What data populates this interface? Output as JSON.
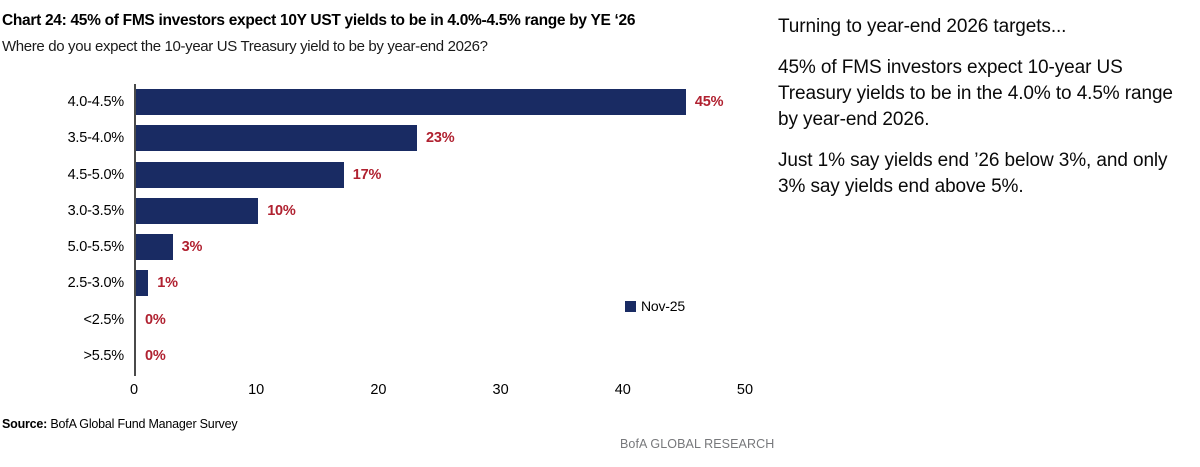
{
  "chart": {
    "title": "Chart 24: 45% of FMS investors expect 10Y UST yields to be in 4.0%-4.5% range by YE ‘26",
    "subtitle": "Where do you expect the 10-year US Treasury yield to be by year-end 2026?",
    "source_label": "Source:",
    "source_text": " BofA Global Fund Manager Survey",
    "footer": "BofA GLOBAL RESEARCH"
  },
  "chart_data": {
    "type": "bar",
    "orientation": "horizontal",
    "title": "Chart 24: 45% of FMS investors expect 10Y UST yields to be in 4.0%-4.5% range by YE ‘26",
    "subtitle": "Where do you expect the 10-year US Treasury yield to be by year-end 2026?",
    "categories": [
      "4.0-4.5%",
      "3.5-4.0%",
      "4.5-5.0%",
      "3.0-3.5%",
      "5.0-5.5%",
      "2.5-3.0%",
      "<2.5%",
      ">5.5%"
    ],
    "series": [
      {
        "name": "Nov-25",
        "values": [
          45,
          23,
          17,
          10,
          3,
          1,
          0,
          0
        ]
      }
    ],
    "data_labels": [
      "45%",
      "23%",
      "17%",
      "10%",
      "3%",
      "1%",
      "0%",
      "0%"
    ],
    "xlabel": "",
    "ylabel": "",
    "xlim": [
      0,
      50
    ],
    "xticks": [
      0,
      10,
      20,
      30,
      40,
      50
    ],
    "grid": false,
    "legend_position": "right-middle",
    "legend_label": "Nov-25",
    "bar_color": "#192b63",
    "data_label_color": "#b02130",
    "axis_color": "#4a4a4a",
    "source": "BofA Global Fund Manager Survey"
  },
  "commentary": {
    "p1": "Turning to year-end 2026 targets...",
    "p2": "45% of FMS investors expect 10-year US Treasury yields to be in the 4.0% to 4.5% range by year-end 2026.",
    "p3": "Just 1% say yields end ’26 below 3%, and only 3% say yields end above 5%."
  }
}
